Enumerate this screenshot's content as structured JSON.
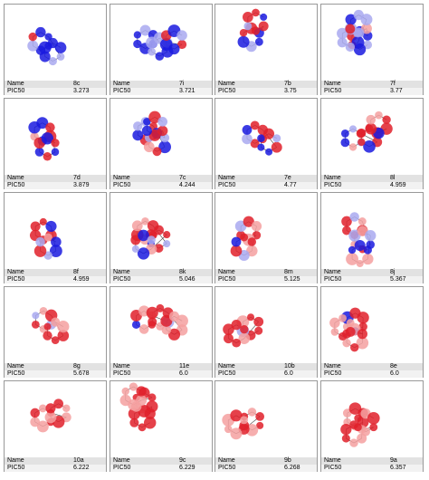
{
  "labels": {
    "name": "Name",
    "pic50": "PIC50"
  },
  "cells": [
    {
      "name": "8c",
      "pic50": "3.273"
    },
    {
      "name": "7i",
      "pic50": "3.721"
    },
    {
      "name": "7b",
      "pic50": "3.75"
    },
    {
      "name": "7f",
      "pic50": "3.77"
    },
    {
      "name": "7d",
      "pic50": "3.879"
    },
    {
      "name": "7c",
      "pic50": "4.244"
    },
    {
      "name": "7e",
      "pic50": "4.77"
    },
    {
      "name": "8l",
      "pic50": "4.959"
    },
    {
      "name": "8f",
      "pic50": "4.959"
    },
    {
      "name": "8k",
      "pic50": "5.046"
    },
    {
      "name": "8m",
      "pic50": "5.125"
    },
    {
      "name": "8j",
      "pic50": "5.367"
    },
    {
      "name": "8g",
      "pic50": "5.678"
    },
    {
      "name": "11e",
      "pic50": "6.0"
    },
    {
      "name": "10b",
      "pic50": "6.0"
    },
    {
      "name": "8e",
      "pic50": "6.0"
    },
    {
      "name": "10a",
      "pic50": "6.222"
    },
    {
      "name": "9c",
      "pic50": "6.229"
    },
    {
      "name": "9b",
      "pic50": "6.268"
    },
    {
      "name": "9a",
      "pic50": "6.357"
    }
  ]
}
